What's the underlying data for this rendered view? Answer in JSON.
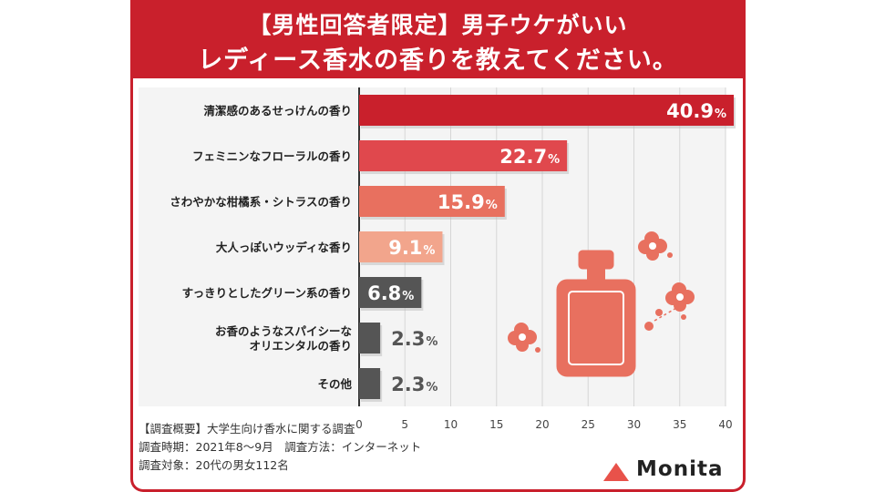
{
  "header": {
    "title_line1": "【男性回答者限定】男子ウケがいい",
    "title_line2": "レディース香水の香りを教えてください。"
  },
  "chart_data": {
    "type": "bar",
    "orientation": "horizontal",
    "title": "【男性回答者限定】男子ウケがいい レディース香水の香りを教えてください。",
    "categories": [
      [
        "清潔感のあるせっけんの香り"
      ],
      [
        "フェミニンなフローラルの香り"
      ],
      [
        "さわやかな柑橘系・シトラスの香り"
      ],
      [
        "大人っぽいウッディな香り"
      ],
      [
        "すっきりとしたグリーン系の香り"
      ],
      [
        "お香のようなスパイシーな",
        "オリエンタルの香り"
      ],
      [
        "その他"
      ]
    ],
    "values": [
      40.9,
      22.7,
      15.9,
      9.1,
      6.8,
      2.3,
      2.3
    ],
    "value_labels": [
      "40.9",
      "22.7",
      "15.9",
      "9.1",
      "6.8",
      "2.3",
      "2.3"
    ],
    "unit": "%",
    "bar_colors": [
      "#c9202c",
      "#e0484d",
      "#e8705f",
      "#f2a58c",
      "#555555",
      "#555555",
      "#555555"
    ],
    "xlim": [
      0,
      40
    ],
    "xticks": [
      0,
      5,
      10,
      15,
      20,
      25,
      30,
      35,
      40
    ],
    "grid": true
  },
  "footer": {
    "line1": "【調査概要】大学生向け香水に関する調査",
    "line2": "調査時期：2021年8～9月　調査方法：インターネット",
    "line3": "調査対象：20代の男女112名"
  },
  "brand": {
    "name": "Monita",
    "accent": "#e8524a"
  },
  "colors": {
    "header_bg": "#c9202c",
    "decoration": "#e8705f"
  }
}
